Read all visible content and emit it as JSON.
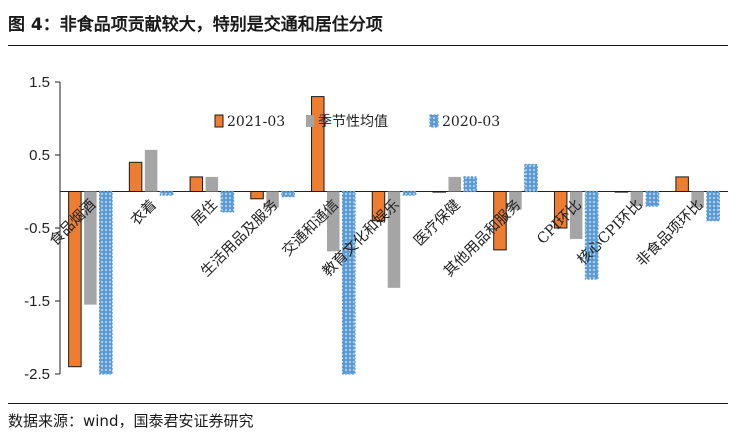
{
  "title": "图 4：非食品项贡献较大，特别是交通和居住分项",
  "source": "数据来源：wind，国泰君安证券研究",
  "chart_data": {
    "type": "bar",
    "title": "",
    "xlabel": "",
    "ylabel": "",
    "ylim": [
      -2.5,
      1.5
    ],
    "yticks": [
      "1.5",
      "0.5",
      "-0.5",
      "-1.5",
      "-2.5"
    ],
    "legend_position": "top-right",
    "categories": [
      "食品烟酒",
      "衣着",
      "居住",
      "生活用品及服务",
      "交通和通信",
      "教育文化和娱乐",
      "医疗保健",
      "其他用品和服务",
      "CPI环比",
      "核心CPI环比",
      "非食品项环比"
    ],
    "series": [
      {
        "name": "2021-03",
        "color": "#ED7D31",
        "values": [
          -2.4,
          0.4,
          0.2,
          -0.1,
          1.3,
          -0.4,
          0.0,
          -0.8,
          -0.5,
          0.0,
          0.2
        ]
      },
      {
        "name": "季节性均值",
        "color": "#A5A5A5",
        "values": [
          -1.55,
          0.57,
          0.2,
          -0.22,
          -0.82,
          -1.32,
          0.2,
          -0.25,
          -0.65,
          -0.2,
          -0.22
        ]
      },
      {
        "name": "2020-03",
        "color": "#5B9BD5",
        "values": [
          -2.5,
          -0.05,
          -0.28,
          -0.07,
          -2.5,
          -0.05,
          0.2,
          0.37,
          -1.2,
          -0.2,
          -0.4
        ]
      }
    ]
  }
}
